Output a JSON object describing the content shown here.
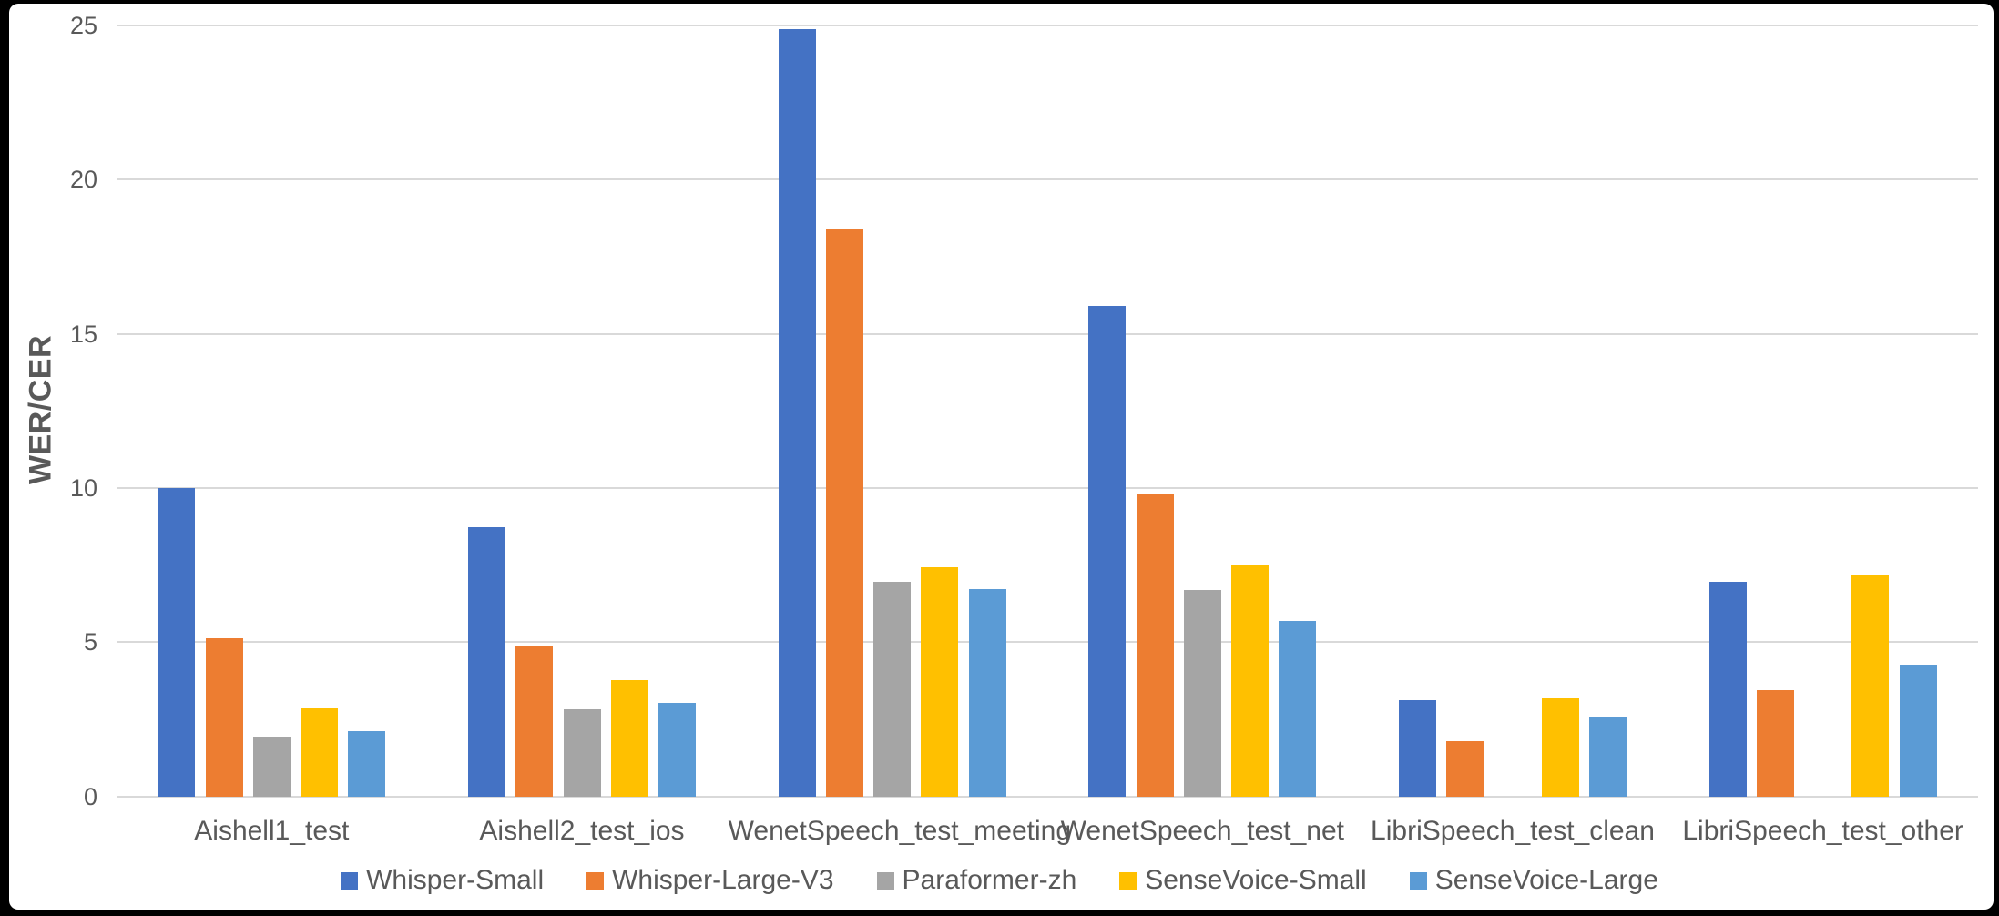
{
  "chart_data": {
    "type": "bar",
    "title": "",
    "xlabel": "",
    "ylabel": "WER/CER",
    "ylim": [
      0,
      25
    ],
    "yticks": [
      0,
      5,
      10,
      15,
      20,
      25
    ],
    "grid": true,
    "legend_position": "bottom",
    "categories": [
      "Aishell1_test",
      "Aishell2_test_ios",
      "WenetSpeech_test_meeting",
      "WenetSpeech_test_net",
      "LibriSpeech_test_clean",
      "LibriSpeech_test_other"
    ],
    "series": [
      {
        "name": "Whisper-Small",
        "color": "#4472C4",
        "values": [
          10.0,
          8.73,
          24.87,
          15.9,
          3.13,
          6.96
        ]
      },
      {
        "name": "Whisper-Large-V3",
        "color": "#ED7D31",
        "values": [
          5.14,
          4.88,
          18.42,
          9.83,
          1.79,
          3.43
        ]
      },
      {
        "name": "Paraformer-zh",
        "color": "#A5A5A5",
        "values": [
          1.95,
          2.82,
          6.97,
          6.69,
          null,
          null
        ]
      },
      {
        "name": "SenseVoice-Small",
        "color": "#FFC000",
        "values": [
          2.85,
          3.77,
          7.43,
          7.53,
          3.17,
          7.19
        ]
      },
      {
        "name": "SenseVoice-Large",
        "color": "#5B9BD5",
        "values": [
          2.1,
          3.04,
          6.71,
          5.7,
          2.58,
          4.28
        ]
      }
    ],
    "colors": {
      "gridline": "#d9d9d9",
      "axis_text": "#595959",
      "panel_background": "#ffffff",
      "outer_background": "#000000"
    }
  }
}
